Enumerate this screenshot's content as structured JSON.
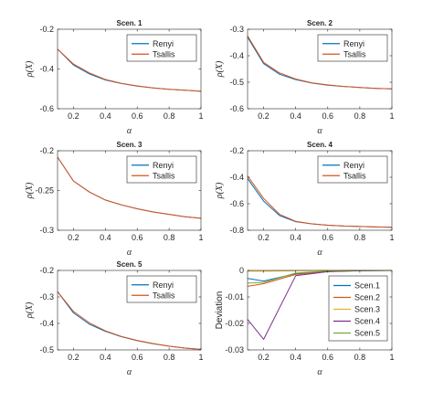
{
  "colors": {
    "renyi": "#0072BD",
    "tsallis": "#D95319",
    "scen3": "#EDB120",
    "scen4": "#7E2F8E",
    "scen5": "#77AC30",
    "axes": "#262626",
    "background": "#FFFFFF"
  },
  "chart_data": [
    {
      "type": "line",
      "title": "Scen. 1",
      "xlabel": "α",
      "ylabel": "ρ(X)",
      "xlim": [
        0.1,
        1
      ],
      "ylim": [
        -0.6,
        -0.2
      ],
      "xticks": [
        "0.2",
        "0.4",
        "0.6",
        "0.8",
        "1"
      ],
      "xtick_values": [
        0.2,
        0.4,
        0.6,
        0.8,
        1
      ],
      "yticks": [
        "-0.2",
        "-0.4",
        "-0.6"
      ],
      "ytick_values": [
        -0.2,
        -0.4,
        -0.6
      ],
      "legend": "top-right",
      "x": [
        0.1,
        0.2,
        0.3,
        0.4,
        0.5,
        0.6,
        0.7,
        0.8,
        0.9,
        1.0
      ],
      "series": [
        {
          "name": "Renyi",
          "color": "renyi",
          "values": [
            -0.3,
            -0.38,
            -0.425,
            -0.455,
            -0.473,
            -0.486,
            -0.495,
            -0.502,
            -0.507,
            -0.512
          ]
        },
        {
          "name": "Tsallis",
          "color": "tsallis",
          "values": [
            -0.3,
            -0.375,
            -0.42,
            -0.453,
            -0.472,
            -0.485,
            -0.495,
            -0.502,
            -0.507,
            -0.512
          ]
        }
      ]
    },
    {
      "type": "line",
      "title": "Scen. 2",
      "xlabel": "α",
      "ylabel": "ρ(X)",
      "xlim": [
        0.1,
        1
      ],
      "ylim": [
        -0.6,
        -0.3
      ],
      "xticks": [
        "0.2",
        "0.4",
        "0.6",
        "0.8",
        "1"
      ],
      "xtick_values": [
        0.2,
        0.4,
        0.6,
        0.8,
        1
      ],
      "yticks": [
        "-0.3",
        "-0.4",
        "-0.5",
        "-0.6"
      ],
      "ytick_values": [
        -0.3,
        -0.4,
        -0.5,
        -0.6
      ],
      "legend": "top-right",
      "x": [
        0.1,
        0.2,
        0.3,
        0.4,
        0.5,
        0.6,
        0.7,
        0.8,
        0.9,
        1.0
      ],
      "series": [
        {
          "name": "Renyi",
          "color": "renyi",
          "values": [
            -0.33,
            -0.43,
            -0.47,
            -0.49,
            -0.503,
            -0.511,
            -0.516,
            -0.52,
            -0.523,
            -0.525
          ]
        },
        {
          "name": "Tsallis",
          "color": "tsallis",
          "values": [
            -0.325,
            -0.425,
            -0.465,
            -0.488,
            -0.502,
            -0.51,
            -0.516,
            -0.52,
            -0.523,
            -0.525
          ]
        }
      ]
    },
    {
      "type": "line",
      "title": "Scen. 3",
      "xlabel": "α",
      "ylabel": "ρ(X)",
      "xlim": [
        0.1,
        1
      ],
      "ylim": [
        -0.3,
        -0.2
      ],
      "xticks": [
        "0.2",
        "0.4",
        "0.6",
        "0.8",
        "1"
      ],
      "xtick_values": [
        0.2,
        0.4,
        0.6,
        0.8,
        1
      ],
      "yticks": [
        "-0.2",
        "-0.25",
        "-0.3"
      ],
      "ytick_values": [
        -0.2,
        -0.25,
        -0.3
      ],
      "legend": "top-right",
      "x": [
        0.1,
        0.2,
        0.3,
        0.4,
        0.5,
        0.6,
        0.7,
        0.8,
        0.9,
        1.0
      ],
      "series": [
        {
          "name": "Renyi",
          "color": "renyi",
          "values": [
            -0.208,
            -0.238,
            -0.252,
            -0.262,
            -0.268,
            -0.273,
            -0.277,
            -0.28,
            -0.283,
            -0.285
          ]
        },
        {
          "name": "Tsallis",
          "color": "tsallis",
          "values": [
            -0.208,
            -0.238,
            -0.252,
            -0.262,
            -0.268,
            -0.273,
            -0.277,
            -0.28,
            -0.283,
            -0.285
          ]
        }
      ]
    },
    {
      "type": "line",
      "title": "Scen. 4",
      "xlabel": "α",
      "ylabel": "ρ(X)",
      "xlim": [
        0.1,
        1
      ],
      "ylim": [
        -0.8,
        -0.2
      ],
      "xticks": [
        "0.2",
        "0.4",
        "0.6",
        "0.8",
        "1"
      ],
      "xtick_values": [
        0.2,
        0.4,
        0.6,
        0.8,
        1
      ],
      "yticks": [
        "-0.2",
        "-0.4",
        "-0.6",
        "-0.8"
      ],
      "ytick_values": [
        -0.2,
        -0.4,
        -0.6,
        -0.8
      ],
      "legend": "top-right",
      "x": [
        0.1,
        0.2,
        0.3,
        0.4,
        0.5,
        0.6,
        0.7,
        0.8,
        0.9,
        1.0
      ],
      "series": [
        {
          "name": "Renyi",
          "color": "renyi",
          "values": [
            -0.41,
            -0.58,
            -0.69,
            -0.735,
            -0.752,
            -0.762,
            -0.768,
            -0.772,
            -0.775,
            -0.777
          ]
        },
        {
          "name": "Tsallis",
          "color": "tsallis",
          "values": [
            -0.39,
            -0.56,
            -0.68,
            -0.733,
            -0.752,
            -0.762,
            -0.768,
            -0.772,
            -0.775,
            -0.777
          ]
        }
      ]
    },
    {
      "type": "line",
      "title": "Scen. 5",
      "xlabel": "α",
      "ylabel": "ρ(X)",
      "xlim": [
        0.1,
        1
      ],
      "ylim": [
        -0.5,
        -0.2
      ],
      "xticks": [
        "0.2",
        "0.4",
        "0.6",
        "0.8",
        "1"
      ],
      "xtick_values": [
        0.2,
        0.4,
        0.6,
        0.8,
        1
      ],
      "yticks": [
        "-0.2",
        "-0.3",
        "-0.4",
        "-0.5"
      ],
      "ytick_values": [
        -0.2,
        -0.3,
        -0.4,
        -0.5
      ],
      "legend": "top-right",
      "x": [
        0.1,
        0.2,
        0.3,
        0.4,
        0.5,
        0.6,
        0.7,
        0.8,
        0.9,
        1.0
      ],
      "series": [
        {
          "name": "Renyi",
          "color": "renyi",
          "values": [
            -0.28,
            -0.36,
            -0.403,
            -0.43,
            -0.45,
            -0.465,
            -0.477,
            -0.486,
            -0.493,
            -0.498
          ]
        },
        {
          "name": "Tsallis",
          "color": "tsallis",
          "values": [
            -0.28,
            -0.355,
            -0.398,
            -0.428,
            -0.449,
            -0.464,
            -0.476,
            -0.486,
            -0.493,
            -0.498
          ]
        }
      ]
    },
    {
      "type": "line",
      "title": "",
      "xlabel": "α",
      "ylabel": "Deviation",
      "xlim": [
        0.1,
        1
      ],
      "ylim": [
        -0.03,
        0
      ],
      "xticks": [
        "0.2",
        "0.4",
        "0.6",
        "0.8",
        "1"
      ],
      "xtick_values": [
        0.2,
        0.4,
        0.6,
        0.8,
        1
      ],
      "yticks": [
        "0",
        "-0.01",
        "-0.02",
        "-0.03"
      ],
      "ytick_values": [
        0,
        -0.01,
        -0.02,
        -0.03
      ],
      "legend": "top-right",
      "x": [
        0.1,
        0.2,
        0.4,
        0.6,
        0.8,
        1.0
      ],
      "series": [
        {
          "name": "Scen.1",
          "color": "renyi",
          "values": [
            -0.003,
            -0.004,
            -0.0012,
            -0.0003,
            -0.0001,
            0
          ]
        },
        {
          "name": "Scen.2",
          "color": "tsallis",
          "values": [
            -0.006,
            -0.005,
            -0.0015,
            -0.0004,
            -0.0001,
            0
          ]
        },
        {
          "name": "Scen.3",
          "color": "scen3",
          "values": [
            -0.0003,
            -0.0003,
            -0.0001,
            0,
            0,
            0
          ]
        },
        {
          "name": "Scen.4",
          "color": "scen4",
          "values": [
            -0.0185,
            -0.026,
            -0.002,
            -0.0005,
            -0.0001,
            0
          ]
        },
        {
          "name": "Scen.5",
          "color": "scen5",
          "values": [
            -0.0048,
            -0.0045,
            -0.001,
            -0.0002,
            0,
            0
          ]
        }
      ]
    }
  ]
}
